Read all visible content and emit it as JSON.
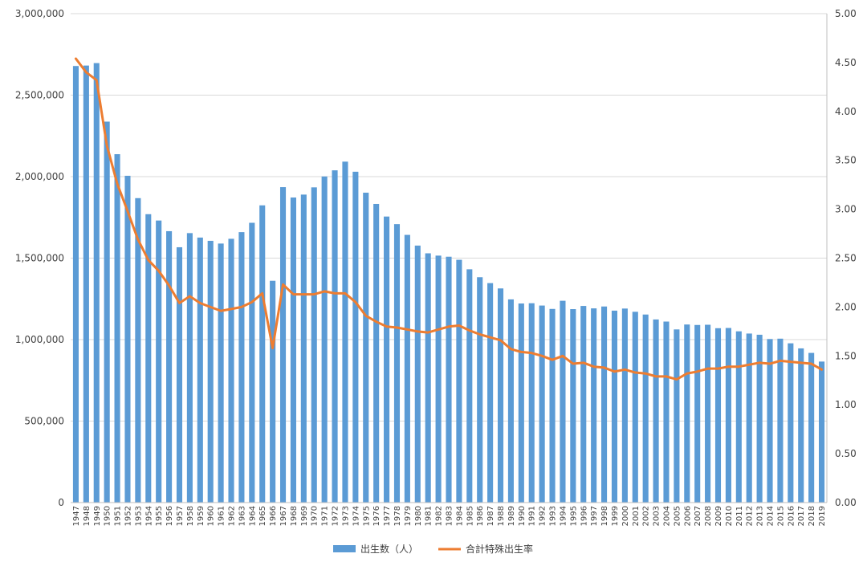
{
  "chart_data": {
    "type": "bar+line",
    "categories": [
      "1947",
      "1948",
      "1949",
      "1950",
      "1951",
      "1952",
      "1953",
      "1954",
      "1955",
      "1956",
      "1957",
      "1958",
      "1959",
      "1960",
      "1961",
      "1962",
      "1963",
      "1964",
      "1965",
      "1966",
      "1967",
      "1968",
      "1969",
      "1970",
      "1971",
      "1972",
      "1973",
      "1974",
      "1975",
      "1976",
      "1977",
      "1978",
      "1979",
      "1980",
      "1981",
      "1982",
      "1983",
      "1984",
      "1985",
      "1986",
      "1987",
      "1988",
      "1989",
      "1990",
      "1991",
      "1992",
      "1993",
      "1994",
      "1995",
      "1996",
      "1997",
      "1998",
      "1999",
      "2000",
      "2001",
      "2002",
      "2003",
      "2004",
      "2005",
      "2006",
      "2007",
      "2008",
      "2009",
      "2010",
      "2011",
      "2012",
      "2013",
      "2014",
      "2015",
      "2016",
      "2017",
      "2018",
      "2019"
    ],
    "series": [
      {
        "name": "出生数（人）",
        "type": "bar",
        "axis": "left",
        "color": "#5B9BD5",
        "values": [
          2678792,
          2681624,
          2696638,
          2337507,
          2137689,
          2005162,
          1868040,
          1769580,
          1730692,
          1665278,
          1566713,
          1653469,
          1626088,
          1606041,
          1589372,
          1618616,
          1659521,
          1716761,
          1823697,
          1360974,
          1935647,
          1871839,
          1889815,
          1934239,
          2000973,
          2038682,
          2091983,
          2029989,
          1901440,
          1832617,
          1755100,
          1708643,
          1642580,
          1576889,
          1529455,
          1515392,
          1508687,
          1489780,
          1431577,
          1382946,
          1346658,
          1314006,
          1246802,
          1221585,
          1223245,
          1208989,
          1188282,
          1238328,
          1187064,
          1206555,
          1191665,
          1203147,
          1177669,
          1190547,
          1170662,
          1153855,
          1123610,
          1110721,
          1062530,
          1092674,
          1089818,
          1091156,
          1070036,
          1071304,
          1050806,
          1037231,
          1029816,
          1003539,
          1005721,
          977242,
          946146,
          918400,
          865239
        ]
      },
      {
        "name": "合計特殊出生率",
        "type": "line",
        "axis": "right",
        "color": "#ED7D31",
        "values": [
          4.54,
          4.4,
          4.32,
          3.65,
          3.26,
          2.98,
          2.69,
          2.48,
          2.37,
          2.22,
          2.04,
          2.11,
          2.04,
          2.0,
          1.96,
          1.98,
          2.0,
          2.05,
          2.14,
          1.58,
          2.23,
          2.13,
          2.13,
          2.13,
          2.16,
          2.14,
          2.14,
          2.05,
          1.91,
          1.85,
          1.8,
          1.79,
          1.77,
          1.75,
          1.74,
          1.77,
          1.8,
          1.81,
          1.76,
          1.72,
          1.69,
          1.66,
          1.57,
          1.54,
          1.53,
          1.5,
          1.46,
          1.5,
          1.42,
          1.43,
          1.39,
          1.38,
          1.34,
          1.36,
          1.33,
          1.32,
          1.29,
          1.29,
          1.26,
          1.32,
          1.34,
          1.37,
          1.37,
          1.39,
          1.39,
          1.41,
          1.43,
          1.42,
          1.45,
          1.44,
          1.43,
          1.42,
          1.36
        ]
      }
    ],
    "y_left": {
      "min": 0,
      "max": 3000000,
      "ticks": [
        0,
        500000,
        1000000,
        1500000,
        2000000,
        2500000,
        3000000
      ],
      "tick_labels": [
        "0",
        "500,000",
        "1,000,000",
        "1,500,000",
        "2,000,000",
        "2,500,000",
        "3,000,000"
      ]
    },
    "y_right": {
      "min": 0,
      "max": 5,
      "ticks": [
        0,
        0.5,
        1,
        1.5,
        2,
        2.5,
        3,
        3.5,
        4,
        4.5,
        5
      ],
      "tick_labels": [
        "0.00",
        "0.50",
        "1.00",
        "1.50",
        "2.00",
        "2.50",
        "3.00",
        "3.50",
        "4.00",
        "4.50",
        "5.00"
      ]
    },
    "grid": true,
    "legend_position": "bottom",
    "title": "",
    "xlabel": "",
    "ylabel": ""
  }
}
